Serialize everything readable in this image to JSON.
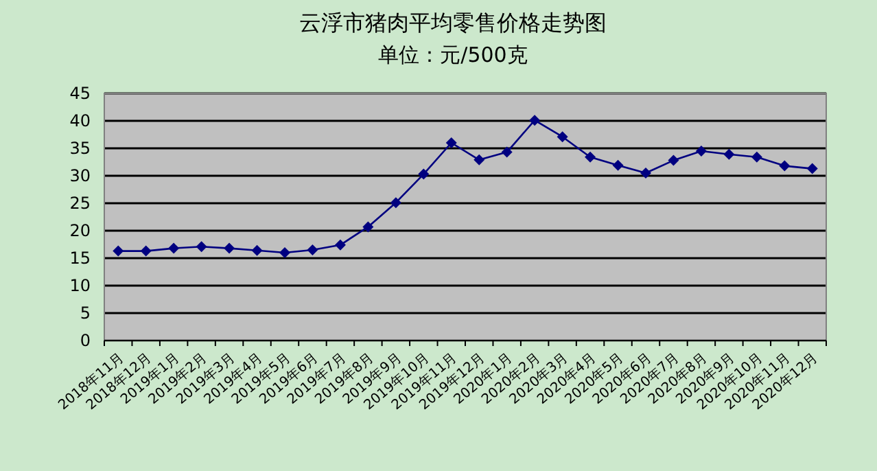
{
  "chart_data": {
    "type": "line",
    "title": "云浮市猪肉平均零售价格走势图",
    "subtitle": "单位：元/500克",
    "categories": [
      "2018年11月",
      "2018年12月",
      "2019年1月",
      "2019年2月",
      "2019年3月",
      "2019年4月",
      "2019年5月",
      "2019年6月",
      "2019年7月",
      "2019年8月",
      "2019年9月",
      "2019年10月",
      "2019年11月",
      "2019年12月",
      "2020年1月",
      "2020年2月",
      "2020年3月",
      "2020年4月",
      "2020年5月",
      "2020年6月",
      "2020年7月",
      "2020年8月",
      "2020年9月",
      "2020年10月",
      "2020年11月",
      "2020年12月"
    ],
    "series": [
      {
        "color": "#000080",
        "values": [
          16.3,
          16.3,
          16.8,
          17.1,
          16.8,
          16.4,
          16.0,
          16.5,
          17.4,
          20.7,
          25.1,
          30.3,
          36.0,
          32.9,
          34.3,
          40.1,
          37.1,
          33.4,
          31.9,
          30.5,
          32.8,
          34.5,
          33.9,
          33.4,
          31.8,
          31.3
        ]
      }
    ],
    "ylim": [
      0,
      45
    ],
    "yticks": [
      0,
      5,
      10,
      15,
      20,
      25,
      30,
      35,
      40,
      45
    ],
    "grid": "y",
    "marker": "diamond",
    "line_style": "solid"
  }
}
